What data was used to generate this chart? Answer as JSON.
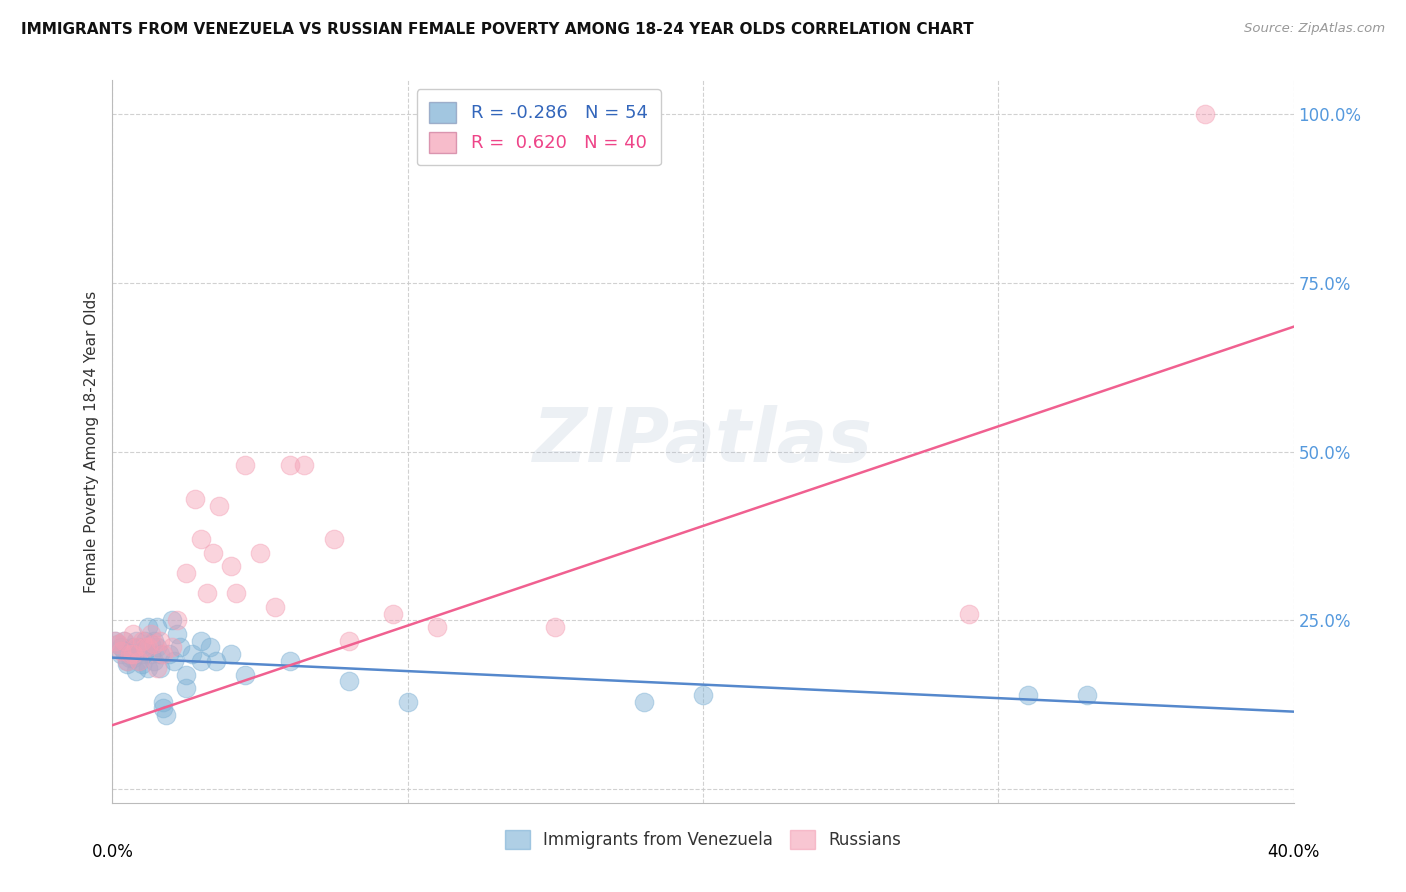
{
  "title": "IMMIGRANTS FROM VENEZUELA VS RUSSIAN FEMALE POVERTY AMONG 18-24 YEAR OLDS CORRELATION CHART",
  "source": "Source: ZipAtlas.com",
  "ylabel": "Female Poverty Among 18-24 Year Olds",
  "color_blue": "#7BAFD4",
  "color_pink": "#F4A0B5",
  "color_blue_line": "#5588CC",
  "color_pink_line": "#F06090",
  "color_right_axis": "#5599DD",
  "xlim": [
    0.0,
    0.4
  ],
  "ylim": [
    -0.02,
    1.05
  ],
  "yticks": [
    0.0,
    0.25,
    0.5,
    0.75,
    1.0
  ],
  "ytick_labels": [
    "",
    "25.0%",
    "50.0%",
    "75.0%",
    "100.0%"
  ],
  "xtick_positions": [
    0.0,
    0.1,
    0.2,
    0.3,
    0.4
  ],
  "blue_trend": [
    0.0,
    0.195,
    0.4,
    0.115
  ],
  "pink_trend": [
    0.0,
    0.095,
    0.4,
    0.685
  ],
  "blue_scatter": [
    [
      0.001,
      0.22
    ],
    [
      0.002,
      0.215
    ],
    [
      0.003,
      0.21
    ],
    [
      0.003,
      0.2
    ],
    [
      0.004,
      0.22
    ],
    [
      0.004,
      0.205
    ],
    [
      0.005,
      0.185
    ],
    [
      0.005,
      0.19
    ],
    [
      0.006,
      0.195
    ],
    [
      0.006,
      0.2
    ],
    [
      0.007,
      0.21
    ],
    [
      0.007,
      0.195
    ],
    [
      0.008,
      0.175
    ],
    [
      0.008,
      0.22
    ],
    [
      0.009,
      0.21
    ],
    [
      0.009,
      0.19
    ],
    [
      0.01,
      0.2
    ],
    [
      0.01,
      0.185
    ],
    [
      0.011,
      0.22
    ],
    [
      0.011,
      0.205
    ],
    [
      0.012,
      0.24
    ],
    [
      0.012,
      0.18
    ],
    [
      0.013,
      0.2
    ],
    [
      0.013,
      0.215
    ],
    [
      0.014,
      0.22
    ],
    [
      0.014,
      0.19
    ],
    [
      0.015,
      0.21
    ],
    [
      0.015,
      0.24
    ],
    [
      0.016,
      0.18
    ],
    [
      0.016,
      0.2
    ],
    [
      0.017,
      0.12
    ],
    [
      0.017,
      0.13
    ],
    [
      0.018,
      0.11
    ],
    [
      0.019,
      0.2
    ],
    [
      0.02,
      0.25
    ],
    [
      0.021,
      0.19
    ],
    [
      0.022,
      0.23
    ],
    [
      0.023,
      0.21
    ],
    [
      0.025,
      0.15
    ],
    [
      0.025,
      0.17
    ],
    [
      0.027,
      0.2
    ],
    [
      0.03,
      0.19
    ],
    [
      0.03,
      0.22
    ],
    [
      0.033,
      0.21
    ],
    [
      0.035,
      0.19
    ],
    [
      0.04,
      0.2
    ],
    [
      0.045,
      0.17
    ],
    [
      0.06,
      0.19
    ],
    [
      0.08,
      0.16
    ],
    [
      0.1,
      0.13
    ],
    [
      0.18,
      0.13
    ],
    [
      0.2,
      0.14
    ],
    [
      0.31,
      0.14
    ],
    [
      0.33,
      0.14
    ]
  ],
  "pink_scatter": [
    [
      0.001,
      0.22
    ],
    [
      0.002,
      0.215
    ],
    [
      0.003,
      0.205
    ],
    [
      0.004,
      0.22
    ],
    [
      0.005,
      0.19
    ],
    [
      0.006,
      0.2
    ],
    [
      0.007,
      0.23
    ],
    [
      0.007,
      0.2
    ],
    [
      0.008,
      0.21
    ],
    [
      0.009,
      0.19
    ],
    [
      0.01,
      0.22
    ],
    [
      0.011,
      0.21
    ],
    [
      0.012,
      0.21
    ],
    [
      0.013,
      0.23
    ],
    [
      0.014,
      0.215
    ],
    [
      0.015,
      0.18
    ],
    [
      0.016,
      0.22
    ],
    [
      0.017,
      0.2
    ],
    [
      0.02,
      0.21
    ],
    [
      0.022,
      0.25
    ],
    [
      0.025,
      0.32
    ],
    [
      0.028,
      0.43
    ],
    [
      0.03,
      0.37
    ],
    [
      0.032,
      0.29
    ],
    [
      0.034,
      0.35
    ],
    [
      0.036,
      0.42
    ],
    [
      0.04,
      0.33
    ],
    [
      0.042,
      0.29
    ],
    [
      0.045,
      0.48
    ],
    [
      0.05,
      0.35
    ],
    [
      0.055,
      0.27
    ],
    [
      0.06,
      0.48
    ],
    [
      0.065,
      0.48
    ],
    [
      0.075,
      0.37
    ],
    [
      0.08,
      0.22
    ],
    [
      0.095,
      0.26
    ],
    [
      0.11,
      0.24
    ],
    [
      0.15,
      0.24
    ],
    [
      0.29,
      0.26
    ],
    [
      0.37,
      1.0
    ]
  ]
}
